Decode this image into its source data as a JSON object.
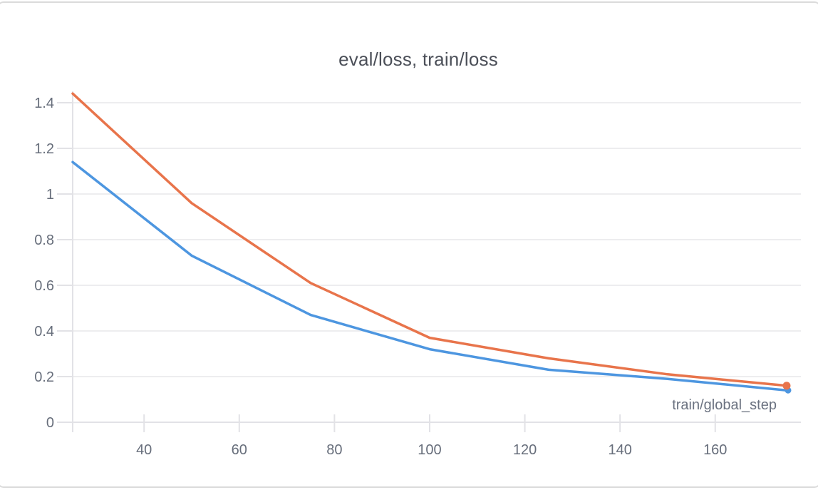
{
  "card": {
    "background": "#ffffff",
    "border_color": "#dbdbdb"
  },
  "chart_data": {
    "type": "line",
    "title": "eval/loss, train/loss",
    "xlabel": "train/global_step",
    "ylabel": "",
    "x": [
      25,
      50,
      75,
      100,
      125,
      150,
      175
    ],
    "series": [
      {
        "name": "eval/loss",
        "color": "#4d96e0",
        "values": [
          1.14,
          0.73,
          0.47,
          0.32,
          0.23,
          0.19,
          0.14
        ],
        "end_marker": true
      },
      {
        "name": "train/loss",
        "color": "#e8744b",
        "values": [
          1.44,
          0.96,
          0.61,
          0.37,
          0.28,
          0.21,
          0.16
        ],
        "end_marker": true
      }
    ],
    "xlim": [
      25,
      178
    ],
    "ylim": [
      0,
      1.45
    ],
    "x_ticks": [
      40,
      60,
      80,
      100,
      120,
      140,
      160
    ],
    "y_ticks": [
      0,
      0.2,
      0.4,
      0.6,
      0.8,
      1,
      1.2,
      1.4
    ],
    "grid": "horizontal",
    "legend": "none",
    "colors": {
      "grid": "#ededef",
      "axis": "#e2e2e6",
      "tick_label": "#676e7b",
      "title": "#4b4f58"
    }
  }
}
